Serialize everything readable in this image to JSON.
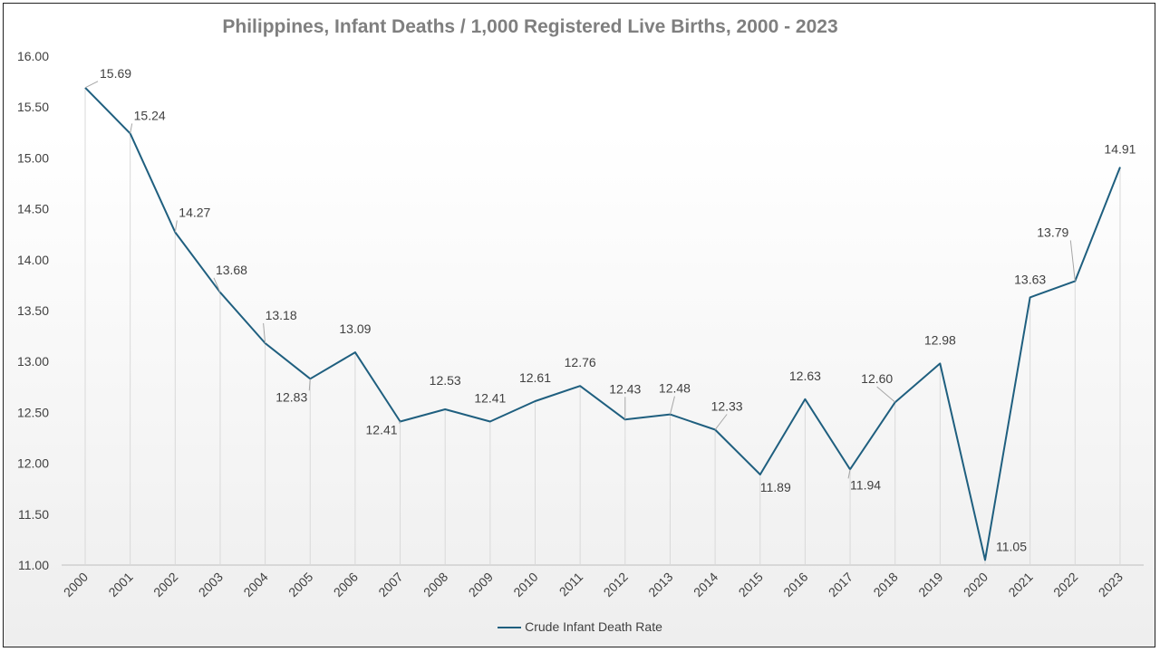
{
  "colors": {
    "series_line": "#1f5f7f",
    "drop_line": "#d9d9d9",
    "leader_line": "#a6a6a6",
    "text": "#404040",
    "title": "#7f7f7f"
  },
  "chart_data": {
    "type": "line",
    "title": "Philippines, Infant Deaths / 1,000 Registered Live Births, 2000 - 2023",
    "xlabel": "",
    "ylabel": "",
    "ylim": [
      11.0,
      16.0
    ],
    "y_ticks": [
      "11.00",
      "11.50",
      "12.00",
      "12.50",
      "13.00",
      "13.50",
      "14.00",
      "14.50",
      "15.00",
      "15.50",
      "16.00"
    ],
    "categories": [
      "2000",
      "2001",
      "2002",
      "2003",
      "2004",
      "2005",
      "2006",
      "2007",
      "2008",
      "2009",
      "2010",
      "2011",
      "2012",
      "2013",
      "2014",
      "2015",
      "2016",
      "2017",
      "2018",
      "2019",
      "2020",
      "2021",
      "2022",
      "2023"
    ],
    "series": [
      {
        "name": "Crude Infant Death Rate",
        "values": [
          15.69,
          15.24,
          14.27,
          13.68,
          13.18,
          12.83,
          13.09,
          12.41,
          12.53,
          12.41,
          12.61,
          12.76,
          12.43,
          12.48,
          12.33,
          11.89,
          12.63,
          11.94,
          12.6,
          12.98,
          11.05,
          13.63,
          13.79,
          14.91
        ],
        "labels": [
          "15.69",
          "15.24",
          "14.27",
          "13.68",
          "13.18",
          "12.83",
          "13.09",
          "12.41",
          "12.53",
          "12.41",
          "12.61",
          "12.76",
          "12.43",
          "12.48",
          "12.33",
          "11.89",
          "12.63",
          "11.94",
          "12.60",
          "12.98",
          "11.05",
          "13.63",
          "13.79",
          "14.91"
        ]
      }
    ],
    "drop_lines": true,
    "grid": false,
    "legend": "bottom"
  }
}
